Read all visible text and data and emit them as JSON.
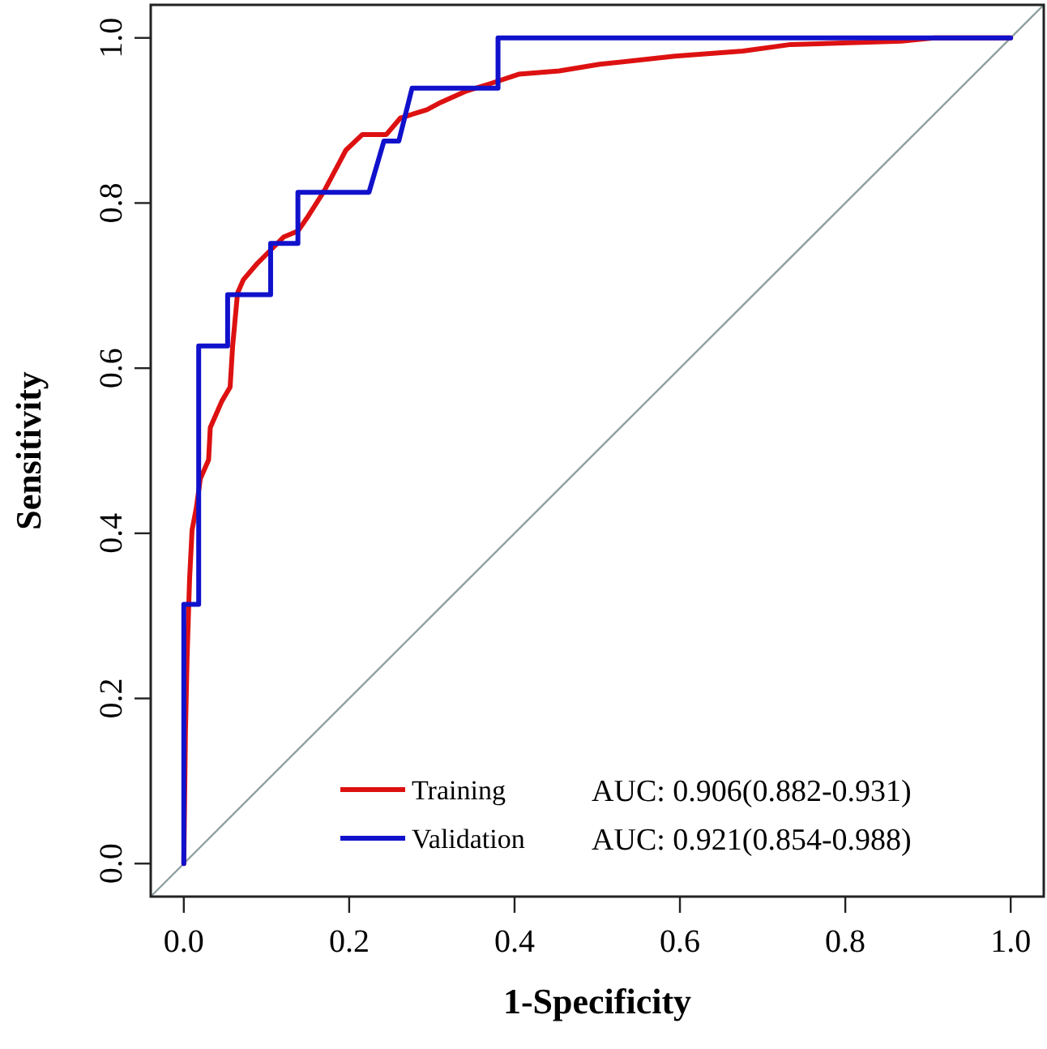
{
  "chart_data": {
    "type": "line",
    "xlabel": "1-Specificity",
    "ylabel": "Sensitivity",
    "xlim": [
      -0.04,
      1.04
    ],
    "ylim": [
      -0.04,
      1.04
    ],
    "xticks": [
      {
        "value": 0,
        "label": "0.0"
      },
      0.2,
      0.4,
      0.6,
      0.8,
      {
        "value": 1,
        "label": "1.0"
      }
    ],
    "yticks": [
      {
        "value": 0,
        "label": "0.0"
      },
      0.2,
      0.4,
      0.6,
      0.8,
      {
        "value": 1,
        "label": "1.0"
      }
    ],
    "grid": false,
    "legend": "bottom",
    "marker": "none",
    "line_style": "solid",
    "annotations": [
      "AUC: 0.906(0.882-0.931)",
      "AUC: 0.921(0.854-0.988)"
    ],
    "series": [
      {
        "color": "#8fa0a0",
        "x": [
          -0.04,
          1.04
        ],
        "values": [
          -0.04,
          1.04
        ]
      },
      {
        "name": "Training",
        "color": "#dd1111",
        "x": [
          0,
          0.002,
          0.004,
          0.007,
          0.01,
          0.015,
          0.02,
          0.03,
          0.032,
          0.046,
          0.056,
          0.059,
          0.065,
          0.072,
          0.089,
          0.105,
          0.121,
          0.138,
          0.151,
          0.17,
          0.187,
          0.196,
          0.216,
          0.245,
          0.262,
          0.294,
          0.311,
          0.34,
          0.372,
          0.405,
          0.454,
          0.503,
          0.594,
          0.676,
          0.734,
          0.868,
          0.907,
          1.0
        ],
        "values": [
          0,
          0.16,
          0.25,
          0.345,
          0.404,
          0.43,
          0.466,
          0.489,
          0.528,
          0.56,
          0.577,
          0.626,
          0.691,
          0.707,
          0.727,
          0.743,
          0.759,
          0.766,
          0.785,
          0.815,
          0.847,
          0.864,
          0.883,
          0.883,
          0.903,
          0.913,
          0.922,
          0.935,
          0.945,
          0.956,
          0.96,
          0.968,
          0.978,
          0.984,
          0.992,
          0.996,
          1.0,
          1.0
        ]
      },
      {
        "name": "Validation",
        "color": "#1111cc",
        "x": [
          0,
          0,
          0.018,
          0.018,
          0.053,
          0.053,
          0.105,
          0.105,
          0.138,
          0.138,
          0.224,
          0.242,
          0.26,
          0.276,
          0.38,
          0.38,
          1.0
        ],
        "values": [
          0,
          0.314,
          0.314,
          0.627,
          0.627,
          0.689,
          0.689,
          0.751,
          0.751,
          0.813,
          0.813,
          0.875,
          0.875,
          0.939,
          0.939,
          1.0,
          1.0
        ]
      }
    ]
  }
}
